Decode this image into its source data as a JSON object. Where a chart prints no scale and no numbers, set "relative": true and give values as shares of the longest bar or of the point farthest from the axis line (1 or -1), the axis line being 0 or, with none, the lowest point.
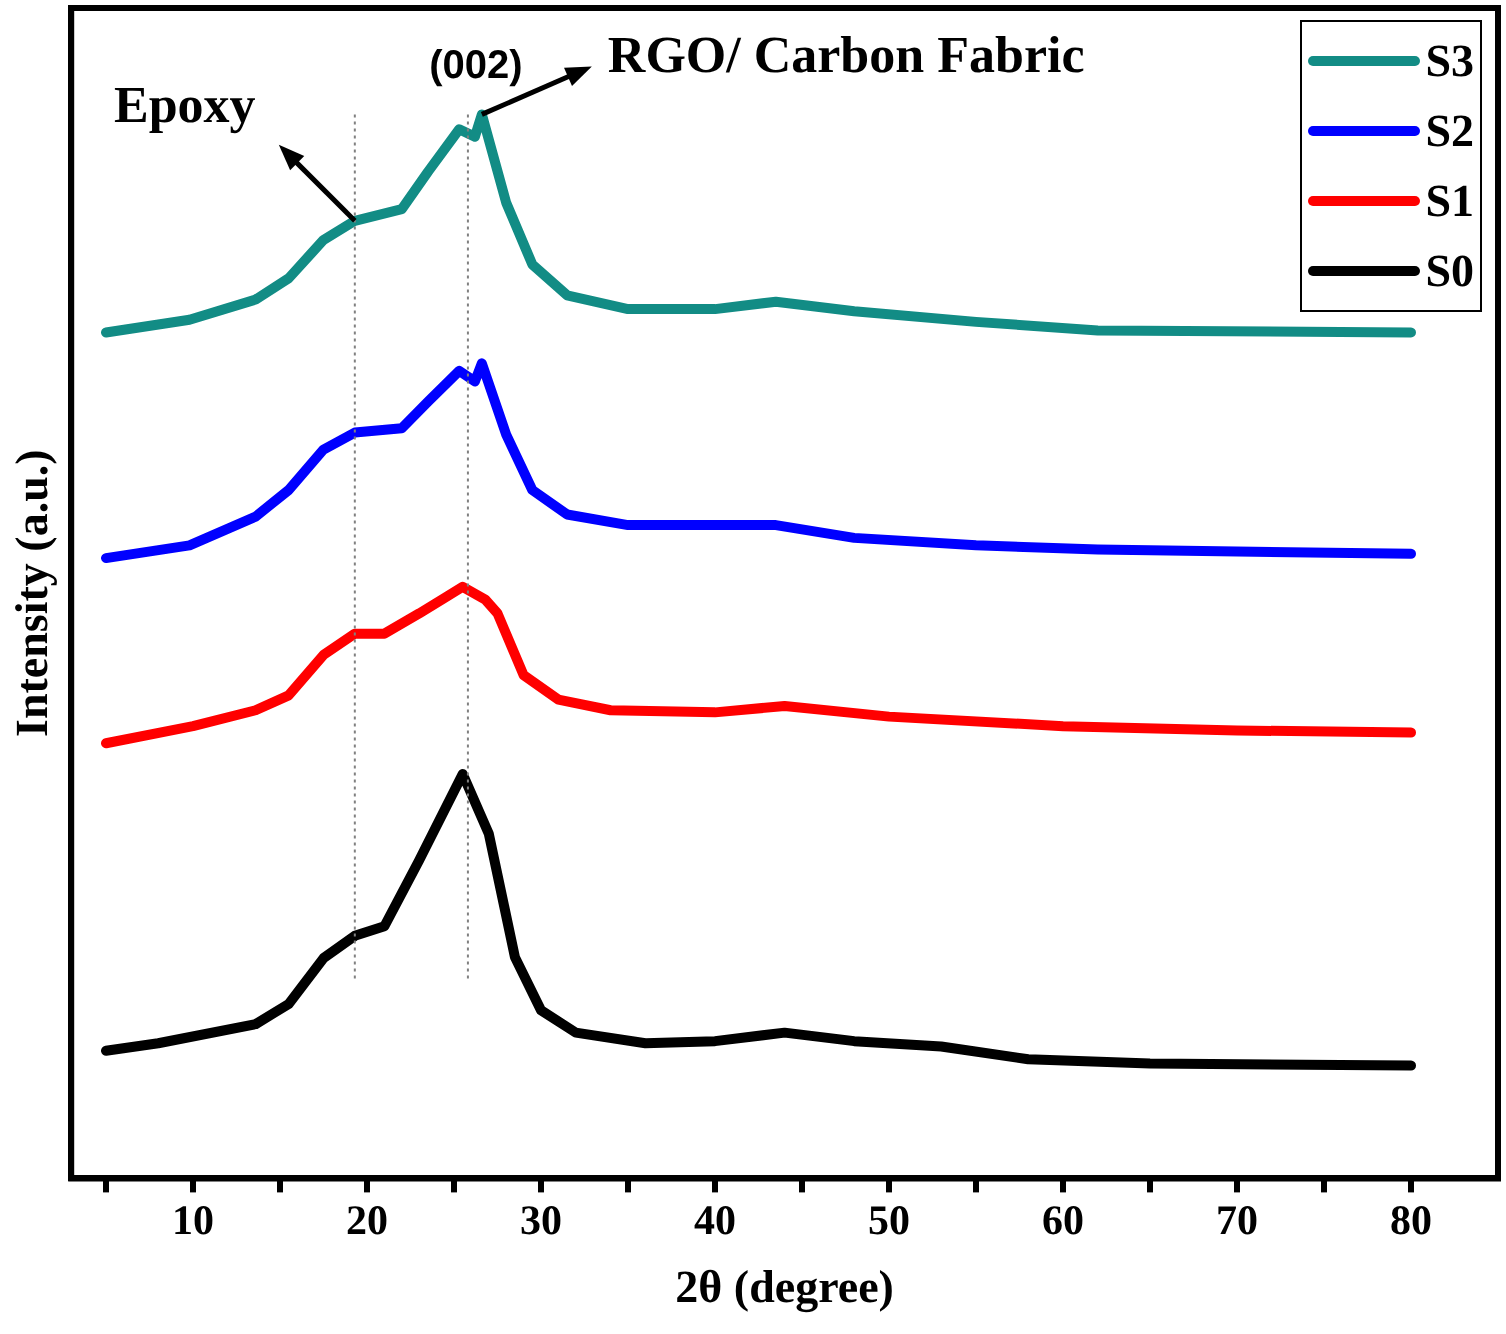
{
  "chart_data": {
    "type": "line",
    "relative": true,
    "xlabel": "2θ (degree)",
    "ylabel": "Intensity (a.u.)",
    "xlim": [
      3,
      85
    ],
    "xticks": [
      {
        "value": 5,
        "label": null
      },
      10,
      {
        "value": 15,
        "label": null
      },
      20,
      {
        "value": 25,
        "label": null
      },
      30,
      {
        "value": 35,
        "label": null
      },
      40,
      {
        "value": 45,
        "label": null
      },
      50,
      {
        "value": 55,
        "label": null
      },
      60,
      {
        "value": 65,
        "label": null
      },
      70,
      {
        "value": 75,
        "label": null
      },
      80
    ],
    "series": [
      {
        "name": "S3",
        "color": "#128c85",
        "x": [
          5,
          9.8,
          13.6,
          15.5,
          17.5,
          19.3,
          22,
          23.5,
          25.3,
          26.2,
          26.6,
          28,
          29.5,
          31.5,
          35,
          40,
          43.5,
          48,
          55,
          62,
          80
        ],
        "values": [
          0.795,
          0.807,
          0.826,
          0.846,
          0.882,
          0.9,
          0.911,
          0.946,
          0.986,
          0.979,
          1.0,
          0.917,
          0.859,
          0.83,
          0.817,
          0.817,
          0.824,
          0.815,
          0.805,
          0.797,
          0.795
        ]
      },
      {
        "name": "S2",
        "color": "#0000ff",
        "x": [
          5,
          9.8,
          13.6,
          15.5,
          17.5,
          19.3,
          22,
          23.5,
          25.3,
          26.2,
          26.6,
          28,
          29.5,
          31.5,
          35,
          40,
          43.5,
          48,
          55,
          62,
          80
        ],
        "values": [
          0.583,
          0.595,
          0.622,
          0.647,
          0.685,
          0.701,
          0.705,
          0.73,
          0.759,
          0.749,
          0.766,
          0.699,
          0.647,
          0.624,
          0.614,
          0.614,
          0.614,
          0.602,
          0.595,
          0.591,
          0.587
        ]
      },
      {
        "name": "S1",
        "color": "#ff0000",
        "x": [
          5,
          10,
          13.6,
          15.5,
          17.5,
          19.3,
          21,
          23,
          24.5,
          25.5,
          26.8,
          27.5,
          29,
          31,
          34,
          40,
          44,
          50,
          60,
          70,
          80
        ],
        "values": [
          0.409,
          0.425,
          0.44,
          0.454,
          0.492,
          0.512,
          0.512,
          0.531,
          0.546,
          0.556,
          0.544,
          0.531,
          0.473,
          0.45,
          0.44,
          0.438,
          0.444,
          0.434,
          0.425,
          0.421,
          0.419
        ]
      },
      {
        "name": "S0",
        "color": "#000000",
        "x": [
          5,
          8,
          13.6,
          15.5,
          17.5,
          19.3,
          21,
          23,
          25.5,
          27,
          28.5,
          30,
          32,
          36,
          40,
          44,
          48,
          53,
          58,
          65,
          80
        ],
        "values": [
          0.12,
          0.127,
          0.145,
          0.164,
          0.207,
          0.228,
          0.237,
          0.299,
          0.38,
          0.324,
          0.208,
          0.158,
          0.137,
          0.127,
          0.129,
          0.137,
          0.129,
          0.124,
          0.112,
          0.108,
          0.106
        ]
      }
    ],
    "ref_lines": [
      {
        "axis": "x",
        "value": 19.3,
        "color": "#808080",
        "line_style": "dotted"
      },
      {
        "axis": "x",
        "value": 25.8,
        "color": "#808080",
        "line_style": "dotted"
      }
    ],
    "annotations": [
      {
        "text": "Epoxy",
        "x": 19.3,
        "y": 0.9
      },
      {
        "text": "(002)",
        "x": 25.8,
        "y": 0.986
      },
      {
        "text": "RGO/ Carbon Fabric",
        "x": 26.6,
        "y": 1.0
      }
    ],
    "legend": "top right",
    "grid": false,
    "marker": "none",
    "line_style": "solid"
  }
}
